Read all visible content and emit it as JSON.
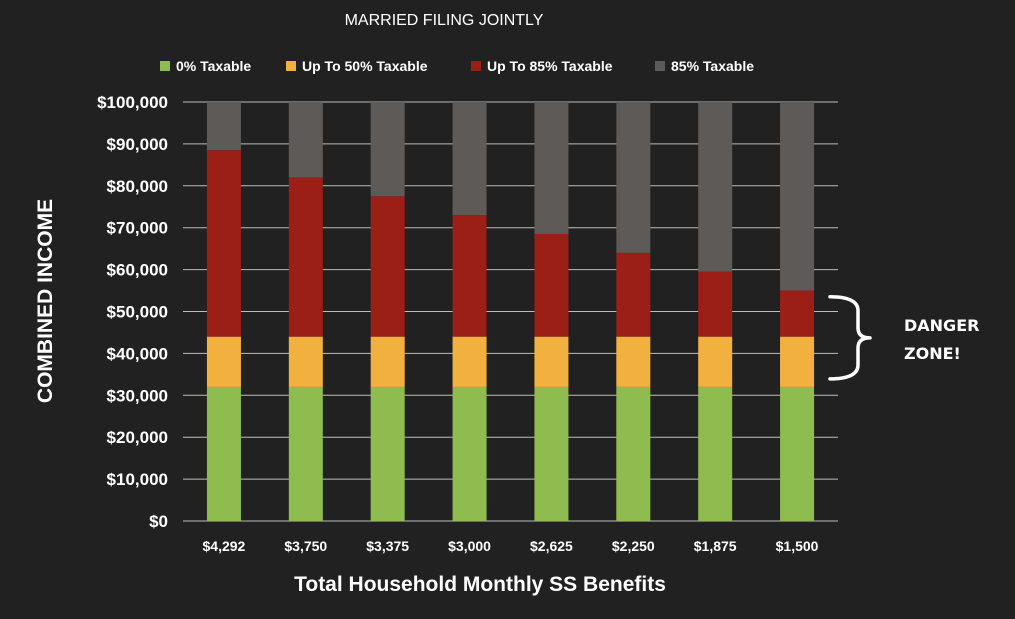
{
  "chart_data": {
    "type": "bar",
    "stacked": true,
    "title": "MARRIED FILING JOINTLY",
    "xlabel": "Total Household Monthly SS Benefits",
    "ylabel": "COMBINED INCOME",
    "categories": [
      "$4,292",
      "$3,750",
      "$3,375",
      "$3,000",
      "$2,625",
      "$2,250",
      "$1,875",
      "$1,500"
    ],
    "ylim": [
      0,
      100000
    ],
    "yticks": [
      0,
      10000,
      20000,
      30000,
      40000,
      50000,
      60000,
      70000,
      80000,
      90000,
      100000
    ],
    "ytick_labels": [
      "$0",
      "$10,000",
      "$20,000",
      "$30,000",
      "$40,000",
      "$50,000",
      "$60,000",
      "$70,000",
      "$80,000",
      "$90,000",
      "$100,000"
    ],
    "grid": true,
    "legend_position": "top",
    "series": [
      {
        "name": "0% Taxable",
        "color": "#8fbc4f",
        "values": [
          32000,
          32000,
          32000,
          32000,
          32000,
          32000,
          32000,
          32000
        ]
      },
      {
        "name": "Up To 50% Taxable",
        "color": "#f2b13f",
        "values": [
          12000,
          12000,
          12000,
          12000,
          12000,
          12000,
          12000,
          12000
        ]
      },
      {
        "name": "Up To 85% Taxable",
        "color": "#9b1e17",
        "values": [
          44500,
          38000,
          33500,
          29000,
          24500,
          20000,
          15500,
          11000
        ]
      },
      {
        "name": "85% Taxable",
        "color": "#5e5a58",
        "values": [
          11500,
          18000,
          22500,
          27000,
          31500,
          36000,
          40500,
          45000
        ]
      }
    ],
    "annotations": [
      {
        "text_lines": [
          "DANGER",
          "ZONE!"
        ],
        "bracket_from": 32000,
        "bracket_to": 54000
      }
    ]
  }
}
